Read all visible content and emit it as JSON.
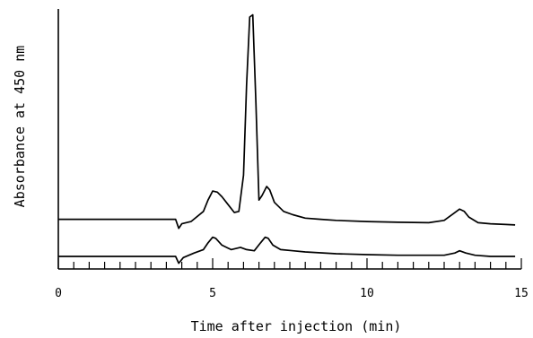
{
  "chart_data": {
    "type": "line",
    "title": "",
    "xlabel": "Time after injection (min)",
    "ylabel": "Absorbance at 450 nm",
    "xlim": [
      0,
      15
    ],
    "ylim": [
      0,
      1
    ],
    "x_ticks": [
      0,
      5,
      10,
      15
    ],
    "x_tick_labels": [
      "0",
      "5",
      "10",
      "15"
    ],
    "x_minor_tick_step": 0.5,
    "grid": false,
    "legend": "none",
    "line_color": "#000000",
    "series": [
      {
        "x": [
          0,
          3.8,
          3.9,
          4.0,
          4.3,
          4.7,
          4.85,
          5.0,
          5.15,
          5.3,
          5.5,
          5.7,
          5.85,
          6.0,
          6.1,
          6.2,
          6.3,
          6.4,
          6.5,
          6.6,
          6.75,
          6.85,
          7.0,
          7.3,
          7.6,
          8.0,
          8.5,
          9.0,
          10.0,
          11.0,
          12.0,
          12.5,
          12.8,
          13.0,
          13.15,
          13.3,
          13.6,
          14.0,
          14.5,
          14.8
        ],
        "y": [
          0.085,
          0.085,
          0.045,
          0.065,
          0.075,
          0.12,
          0.17,
          0.21,
          0.205,
          0.185,
          0.15,
          0.115,
          0.12,
          0.28,
          0.68,
          0.98,
          0.99,
          0.6,
          0.17,
          0.19,
          0.23,
          0.215,
          0.16,
          0.12,
          0.105,
          0.09,
          0.085,
          0.08,
          0.075,
          0.072,
          0.07,
          0.08,
          0.11,
          0.13,
          0.12,
          0.095,
          0.07,
          0.065,
          0.062,
          0.06
        ]
      },
      {
        "x": [
          0,
          3.8,
          3.9,
          4.05,
          4.4,
          4.7,
          4.85,
          5.0,
          5.1,
          5.3,
          5.6,
          5.9,
          6.1,
          6.35,
          6.55,
          6.7,
          6.8,
          6.95,
          7.2,
          7.6,
          8.0,
          9.0,
          10.0,
          11.0,
          12.5,
          12.85,
          13.0,
          13.2,
          13.5,
          14.0,
          14.5,
          14.8
        ],
        "y": [
          0.0,
          0.0,
          -0.03,
          -0.005,
          0.015,
          0.03,
          0.06,
          0.085,
          0.08,
          0.05,
          0.03,
          0.04,
          0.03,
          0.025,
          0.06,
          0.085,
          0.08,
          0.05,
          0.03,
          0.025,
          0.02,
          0.012,
          0.008,
          0.005,
          0.005,
          0.015,
          0.025,
          0.015,
          0.005,
          0.0,
          0.0,
          0.0
        ]
      }
    ]
  }
}
